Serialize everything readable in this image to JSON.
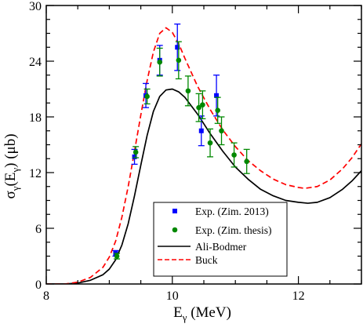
{
  "chart_data": {
    "type": "scatter",
    "xlabel": {
      "main": "E",
      "sub": "γ",
      "unit": " (MeV)"
    },
    "ylabel": {
      "main": "σ",
      "sub1": "γ",
      "mid": "(E",
      "sub2": "γ",
      "end": ") (μb)"
    },
    "xlim": [
      8,
      13
    ],
    "ylim": [
      0,
      30
    ],
    "x_ticks": [
      8,
      10,
      12
    ],
    "x_minor_step": 0.5,
    "y_ticks": [
      0,
      6,
      12,
      18,
      24,
      30
    ],
    "y_minor_step": 1.5,
    "x_tick_labels": [
      "8",
      "10",
      "12"
    ],
    "y_tick_labels": [
      "0",
      "6",
      "12",
      "18",
      "24",
      "30"
    ],
    "grid": false,
    "legend_position": "bottom-center",
    "series": [
      {
        "name": "Exp. (Zim. 2013)",
        "kind": "points",
        "marker": "square",
        "color": "#0000ff",
        "points": [
          {
            "x": 9.1,
            "y": 3.3,
            "err": 0.3
          },
          {
            "x": 9.4,
            "y": 13.7,
            "err": 0.8
          },
          {
            "x": 9.58,
            "y": 20.3,
            "err": 1.3
          },
          {
            "x": 9.8,
            "y": 24.1,
            "err": 1.6
          },
          {
            "x": 10.08,
            "y": 25.5,
            "err": 2.5
          },
          {
            "x": 10.46,
            "y": 16.5,
            "err": 1.6
          },
          {
            "x": 10.7,
            "y": 20.3,
            "err": 2.2
          }
        ]
      },
      {
        "name": "Exp. (Zim. thesis)",
        "kind": "points",
        "marker": "circle",
        "color": "#008800",
        "points": [
          {
            "x": 9.12,
            "y": 3.0,
            "err": 0.3
          },
          {
            "x": 9.42,
            "y": 14.2,
            "err": 0.6
          },
          {
            "x": 9.6,
            "y": 20.2,
            "err": 0.8
          },
          {
            "x": 9.8,
            "y": 23.9,
            "err": 1.5
          },
          {
            "x": 10.1,
            "y": 24.1,
            "err": 2.0
          },
          {
            "x": 10.25,
            "y": 20.8,
            "err": 1.6
          },
          {
            "x": 10.42,
            "y": 19.0,
            "err": 1.5
          },
          {
            "x": 10.48,
            "y": 19.3,
            "err": 1.5
          },
          {
            "x": 10.6,
            "y": 15.2,
            "err": 1.5
          },
          {
            "x": 10.72,
            "y": 18.7,
            "err": 1.4
          },
          {
            "x": 10.78,
            "y": 16.5,
            "err": 1.5
          },
          {
            "x": 10.98,
            "y": 13.9,
            "err": 1.3
          },
          {
            "x": 11.18,
            "y": 13.2,
            "err": 1.3
          }
        ]
      },
      {
        "name": "Ali-Bodmer",
        "kind": "line",
        "style": "solid",
        "color": "#000000",
        "points": [
          {
            "x": 8.0,
            "y": 0.0
          },
          {
            "x": 8.3,
            "y": 0.0
          },
          {
            "x": 8.5,
            "y": 0.1
          },
          {
            "x": 8.7,
            "y": 0.4
          },
          {
            "x": 8.9,
            "y": 1.0
          },
          {
            "x": 9.0,
            "y": 1.6
          },
          {
            "x": 9.1,
            "y": 2.6
          },
          {
            "x": 9.2,
            "y": 4.2
          },
          {
            "x": 9.3,
            "y": 6.5
          },
          {
            "x": 9.4,
            "y": 9.5
          },
          {
            "x": 9.5,
            "y": 12.8
          },
          {
            "x": 9.6,
            "y": 16.0
          },
          {
            "x": 9.7,
            "y": 18.6
          },
          {
            "x": 9.8,
            "y": 20.2
          },
          {
            "x": 9.9,
            "y": 20.9
          },
          {
            "x": 10.0,
            "y": 21.0
          },
          {
            "x": 10.1,
            "y": 20.7
          },
          {
            "x": 10.2,
            "y": 20.1
          },
          {
            "x": 10.4,
            "y": 18.3
          },
          {
            "x": 10.6,
            "y": 16.2
          },
          {
            "x": 10.8,
            "y": 14.3
          },
          {
            "x": 11.0,
            "y": 12.6
          },
          {
            "x": 11.2,
            "y": 11.3
          },
          {
            "x": 11.4,
            "y": 10.2
          },
          {
            "x": 11.6,
            "y": 9.5
          },
          {
            "x": 11.8,
            "y": 9.0
          },
          {
            "x": 12.0,
            "y": 8.8
          },
          {
            "x": 12.15,
            "y": 8.7
          },
          {
            "x": 12.3,
            "y": 8.8
          },
          {
            "x": 12.5,
            "y": 9.3
          },
          {
            "x": 12.7,
            "y": 10.2
          },
          {
            "x": 12.85,
            "y": 11.1
          },
          {
            "x": 13.0,
            "y": 12.2
          }
        ]
      },
      {
        "name": "Buck",
        "kind": "line",
        "style": "dashed",
        "color": "#ff0000",
        "points": [
          {
            "x": 8.0,
            "y": 0.0
          },
          {
            "x": 8.3,
            "y": 0.0
          },
          {
            "x": 8.5,
            "y": 0.2
          },
          {
            "x": 8.7,
            "y": 0.7
          },
          {
            "x": 8.9,
            "y": 1.8
          },
          {
            "x": 9.0,
            "y": 2.9
          },
          {
            "x": 9.1,
            "y": 4.6
          },
          {
            "x": 9.2,
            "y": 7.2
          },
          {
            "x": 9.3,
            "y": 10.5
          },
          {
            "x": 9.4,
            "y": 14.3
          },
          {
            "x": 9.5,
            "y": 18.2
          },
          {
            "x": 9.6,
            "y": 21.9
          },
          {
            "x": 9.7,
            "y": 25.0
          },
          {
            "x": 9.8,
            "y": 27.0
          },
          {
            "x": 9.9,
            "y": 27.6
          },
          {
            "x": 10.0,
            "y": 27.1
          },
          {
            "x": 10.1,
            "y": 25.9
          },
          {
            "x": 10.2,
            "y": 24.3
          },
          {
            "x": 10.4,
            "y": 21.3
          },
          {
            "x": 10.6,
            "y": 18.8
          },
          {
            "x": 10.8,
            "y": 16.6
          },
          {
            "x": 11.0,
            "y": 14.8
          },
          {
            "x": 11.2,
            "y": 13.3
          },
          {
            "x": 11.4,
            "y": 12.2
          },
          {
            "x": 11.6,
            "y": 11.3
          },
          {
            "x": 11.8,
            "y": 10.7
          },
          {
            "x": 12.0,
            "y": 10.4
          },
          {
            "x": 12.1,
            "y": 10.3
          },
          {
            "x": 12.3,
            "y": 10.5
          },
          {
            "x": 12.5,
            "y": 11.2
          },
          {
            "x": 12.7,
            "y": 12.4
          },
          {
            "x": 12.85,
            "y": 13.6
          },
          {
            "x": 13.0,
            "y": 15.1
          }
        ]
      }
    ]
  }
}
